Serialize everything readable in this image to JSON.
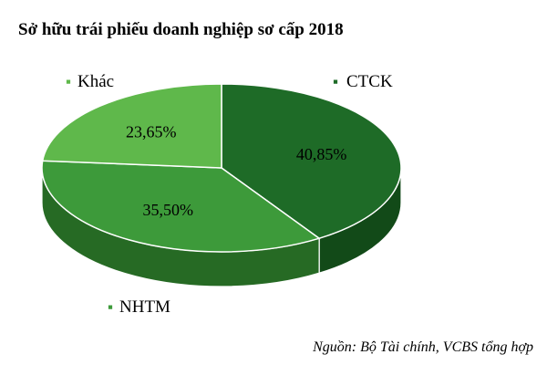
{
  "chart_data": {
    "type": "pie",
    "title": "Sở hữu trái phiếu doanh nghiệp sơ cấp 2018",
    "slices": [
      {
        "name": "CTCK",
        "value": 40.85,
        "label": "40,85%",
        "color": "#1e6b27",
        "side_color": "#124a18"
      },
      {
        "name": "NHTM",
        "value": 35.5,
        "label": "35,50%",
        "color": "#3d9a3a",
        "side_color": "#266a24"
      },
      {
        "name": "Khác",
        "value": 23.65,
        "label": "23,65%",
        "color": "#5fb84b",
        "side_color": "#3e8a30"
      }
    ],
    "legend_labels": {
      "ctck": "CTCK",
      "nhtm": "NHTM",
      "khac": "Khác"
    },
    "legend_marker": "▪",
    "source": "Nguồn: Bộ Tài chính, VCBS tổng hợp"
  }
}
